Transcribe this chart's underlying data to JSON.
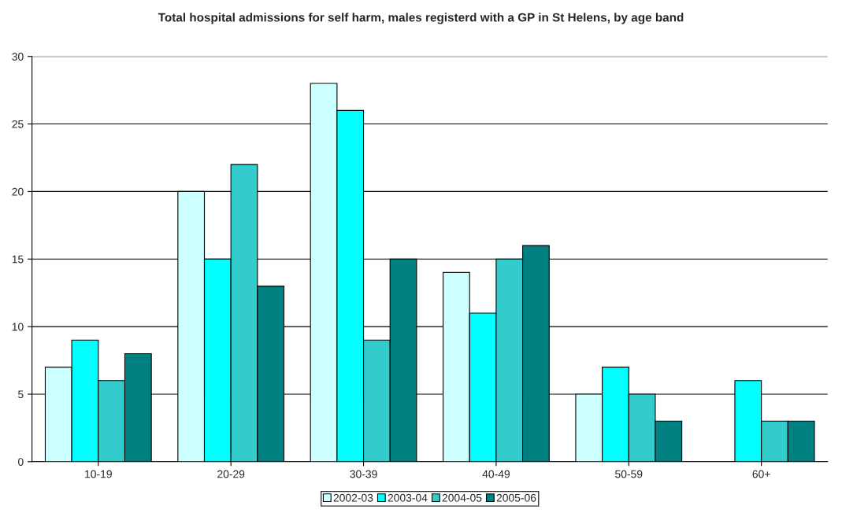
{
  "chart_data": {
    "type": "bar",
    "title": "Total hospital admissions for self harm, males registerd with a GP in St Helens, by age band",
    "categories": [
      "10-19",
      "20-29",
      "30-39",
      "40-49",
      "50-59",
      "60+"
    ],
    "series": [
      {
        "name": "2002-03",
        "color": "#ccffff",
        "values": [
          7,
          20,
          28,
          14,
          5,
          null
        ]
      },
      {
        "name": "2003-04",
        "color": "#00ffff",
        "values": [
          9,
          15,
          26,
          11,
          7,
          6
        ]
      },
      {
        "name": "2004-05",
        "color": "#33cccc",
        "values": [
          6,
          22,
          9,
          15,
          5,
          3
        ]
      },
      {
        "name": "2005-06",
        "color": "#008080",
        "values": [
          8,
          13,
          15,
          16,
          3,
          3
        ]
      }
    ],
    "ylim": [
      0,
      30
    ],
    "yticks": [
      0,
      5,
      10,
      15,
      20,
      25,
      30
    ],
    "grid": "y",
    "legend": "bottom"
  }
}
